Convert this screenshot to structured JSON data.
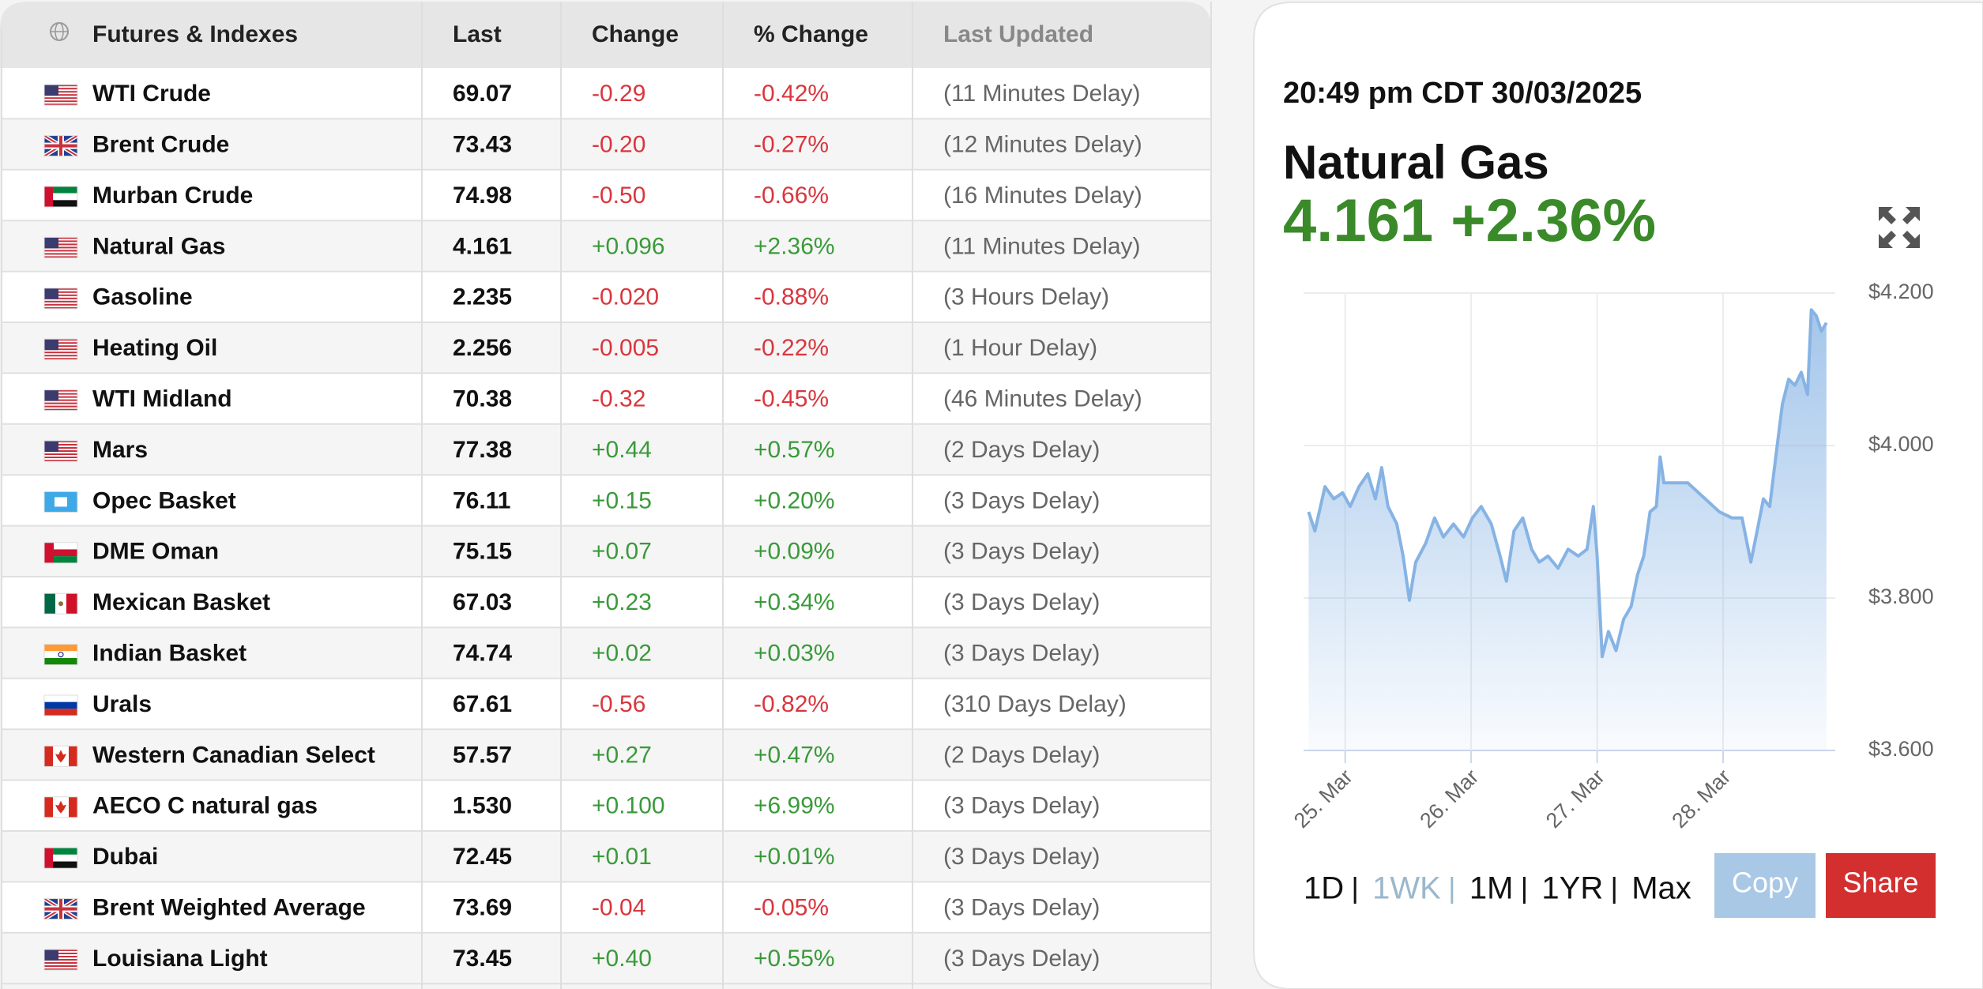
{
  "table": {
    "headers": [
      "Futures & Indexes",
      "Last",
      "Change",
      "% Change",
      "Last Updated"
    ],
    "rows": [
      [
        "WTI Crude",
        "69.07",
        "-0.29",
        "-0.42%",
        "(11 Minutes Delay)"
      ],
      [
        "Brent Crude",
        "73.43",
        "-0.20",
        "-0.27%",
        "(12 Minutes Delay)"
      ],
      [
        "Murban Crude",
        "74.98",
        "-0.50",
        "-0.66%",
        "(16 Minutes Delay)"
      ],
      [
        "Natural Gas",
        "4.161",
        "+0.096",
        "+2.36%",
        "(11 Minutes Delay)"
      ],
      [
        "Gasoline",
        "2.235",
        "-0.020",
        "-0.88%",
        "(3 Hours Delay)"
      ],
      [
        "Heating Oil",
        "2.256",
        "-0.005",
        "-0.22%",
        "(1 Hour Delay)"
      ],
      [
        "WTI Midland",
        "70.38",
        "-0.32",
        "-0.45%",
        "(46 Minutes Delay)"
      ],
      [
        "Mars",
        "77.38",
        "+0.44",
        "+0.57%",
        "(2 Days Delay)"
      ],
      [
        "Opec Basket",
        "76.11",
        "+0.15",
        "+0.20%",
        "(3 Days Delay)"
      ],
      [
        "DME Oman",
        "75.15",
        "+0.07",
        "+0.09%",
        "(3 Days Delay)"
      ],
      [
        "Mexican Basket",
        "67.03",
        "+0.23",
        "+0.34%",
        "(3 Days Delay)"
      ],
      [
        "Indian Basket",
        "74.74",
        "+0.02",
        "+0.03%",
        "(3 Days Delay)"
      ],
      [
        "Urals",
        "67.61",
        "-0.56",
        "-0.82%",
        "(310 Days Delay)"
      ],
      [
        "Western Canadian Select",
        "57.57",
        "+0.27",
        "+0.47%",
        "(2 Days Delay)"
      ],
      [
        "AECO C natural gas",
        "1.530",
        "+0.100",
        "+6.99%",
        "(3 Days Delay)"
      ],
      [
        "Dubai",
        "72.45",
        "+0.01",
        "+0.01%",
        "(3 Days Delay)"
      ],
      [
        "Brent Weighted Average",
        "73.69",
        "-0.04",
        "-0.05%",
        "(3 Days Delay)"
      ],
      [
        "Louisiana Light",
        "73.45",
        "+0.40",
        "+0.55%",
        "(3 Days Delay)"
      ]
    ]
  },
  "chart_data": {
    "type": "area",
    "timestamp": "20:49 pm CDT 30/03/2025",
    "title": "Natural Gas",
    "price": "4.161",
    "change": "+2.36%",
    "color": "#86b3e4",
    "x": [
      24.71,
      24.76,
      24.84,
      24.91,
      24.98,
      25.04,
      25.11,
      25.18,
      25.24,
      25.29,
      25.34,
      25.41,
      25.46,
      25.51,
      25.56,
      25.64,
      25.71,
      25.78,
      25.86,
      25.94,
      26.01,
      26.08,
      26.16,
      26.23,
      26.28,
      26.34,
      26.41,
      26.48,
      26.54,
      26.61,
      26.69,
      26.77,
      26.85,
      26.92,
      26.97,
      27.0,
      27.04,
      27.09,
      27.15,
      27.21,
      27.27,
      27.32,
      27.37,
      27.42,
      27.47,
      27.5,
      27.53,
      27.72,
      27.97,
      28.07,
      28.15,
      28.22,
      28.27,
      28.32,
      28.37,
      28.42,
      28.47,
      28.52,
      28.57,
      28.62,
      28.67,
      28.7,
      28.74,
      28.78,
      28.82
    ],
    "values": [
      3.913,
      3.888,
      3.946,
      3.93,
      3.938,
      3.92,
      3.946,
      3.963,
      3.93,
      3.971,
      3.92,
      3.897,
      3.855,
      3.797,
      3.847,
      3.872,
      3.905,
      3.88,
      3.897,
      3.88,
      3.905,
      3.92,
      3.897,
      3.855,
      3.822,
      3.888,
      3.905,
      3.864,
      3.847,
      3.855,
      3.839,
      3.864,
      3.855,
      3.864,
      3.92,
      3.855,
      3.723,
      3.756,
      3.731,
      3.772,
      3.789,
      3.83,
      3.855,
      3.913,
      3.92,
      3.985,
      3.951,
      3.951,
      3.913,
      3.905,
      3.905,
      3.847,
      3.888,
      3.93,
      3.92,
      3.988,
      4.054,
      4.087,
      4.079,
      4.096,
      4.067,
      4.178,
      4.17,
      4.15,
      4.161
    ],
    "xlim": [
      24.67,
      28.89
    ],
    "xticks": [
      {
        "value": 25,
        "label": "25. Mar"
      },
      {
        "value": 26,
        "label": "26. Mar"
      },
      {
        "value": 27,
        "label": "27. Mar"
      },
      {
        "value": 28,
        "label": "28. Mar"
      }
    ],
    "ylim": [
      3.6,
      4.2
    ],
    "yticks": [
      {
        "value": 3.6,
        "label": "$3.600"
      },
      {
        "value": 3.8,
        "label": "$3.800"
      },
      {
        "value": 4.0,
        "label": "$4.000"
      },
      {
        "value": 4.2,
        "label": "$4.200"
      }
    ],
    "grid": true,
    "ranges": [
      "1D",
      "1WK",
      "1M",
      "1YR",
      "Max"
    ],
    "selected_range": 1,
    "actions": [
      "Copy",
      "Share"
    ]
  }
}
